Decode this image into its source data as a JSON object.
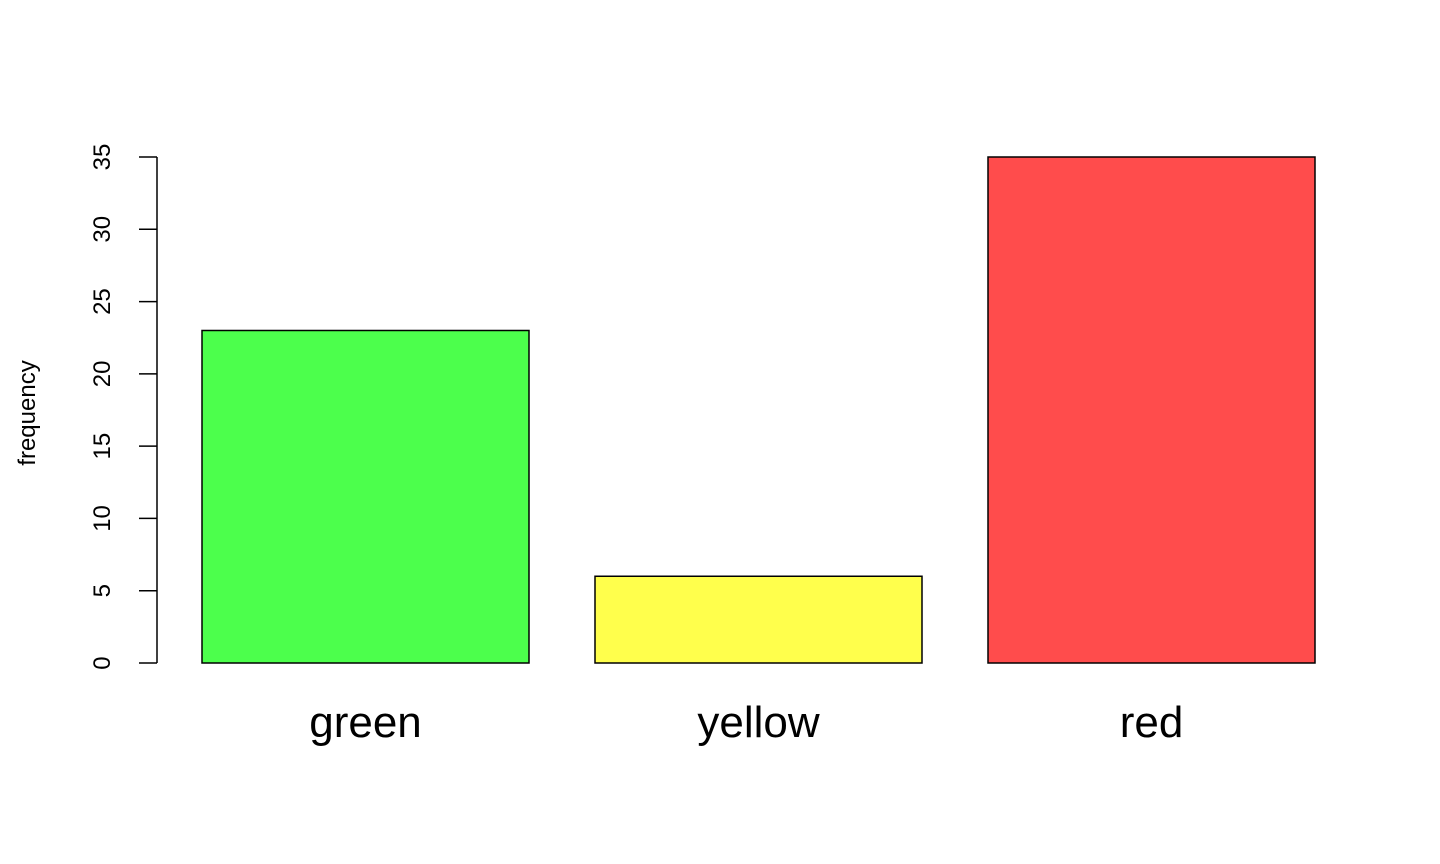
{
  "chart_data": {
    "type": "bar",
    "categories": [
      "green",
      "yellow",
      "red"
    ],
    "values": [
      23,
      6,
      35
    ],
    "colors": [
      "#4cff4c",
      "#ffff4c",
      "#ff4c4c"
    ],
    "title": "",
    "xlabel": "",
    "ylabel": "frequency",
    "ylim": [
      0,
      35
    ],
    "yticks": [
      0,
      5,
      10,
      15,
      20,
      25,
      30,
      35
    ],
    "grid": false,
    "legend": "none"
  }
}
